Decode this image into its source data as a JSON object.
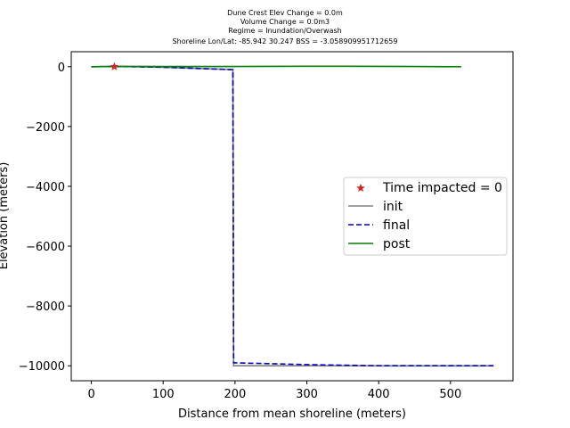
{
  "chart_data": {
    "type": "line",
    "title_lines": [
      "Dune Crest Elev Change = 0.0m",
      "Volume Change = 0.0m3",
      "Regime = Inundation/Overwash",
      "Shoreline Lon/Lat: -85.942 30.247   BSS = -3.058909951712659"
    ],
    "xlabel": "Distance from mean shoreline (meters)",
    "ylabel": "Elevation (meters)",
    "xlim": [
      -28,
      587
    ],
    "ylim": [
      -10500,
      500
    ],
    "xticks": [
      0,
      100,
      200,
      300,
      400,
      500
    ],
    "yticks": [
      0,
      -2000,
      -4000,
      -6000,
      -8000,
      -10000
    ],
    "xtick_labels": [
      "0",
      "100",
      "200",
      "300",
      "400",
      "500"
    ],
    "ytick_labels": [
      "0",
      "−2000",
      "−4000",
      "−6000",
      "−8000",
      "−10000"
    ],
    "series": [
      {
        "name": "init",
        "style": "solid",
        "color": "#808080",
        "x": [
          0,
          30,
          60,
          100,
          150,
          197,
          198,
          200,
          300,
          400,
          500,
          560
        ],
        "y": [
          0,
          5,
          0,
          -20,
          -60,
          -100,
          -10000,
          -10000,
          -10000,
          -10000,
          -10000,
          -10000
        ]
      },
      {
        "name": "final",
        "style": "dashed",
        "color": "#0000cc",
        "x": [
          0,
          30,
          60,
          100,
          150,
          197,
          198,
          200,
          250,
          300,
          400,
          500,
          560
        ],
        "y": [
          0,
          5,
          0,
          -20,
          -60,
          -100,
          -9900,
          -9900,
          -9930,
          -9960,
          -10000,
          -10000,
          -10000
        ]
      },
      {
        "name": "post",
        "style": "solid",
        "color": "#008000",
        "x": [
          0,
          50,
          100,
          150,
          200,
          250,
          300,
          350,
          400,
          450,
          515
        ],
        "y": [
          0,
          10,
          5,
          5,
          5,
          10,
          15,
          15,
          10,
          5,
          0
        ]
      }
    ],
    "markers": [
      {
        "name": "Time impacted = 0",
        "symbol": "star",
        "color": "#d62020",
        "x": 32,
        "y": 0
      }
    ],
    "legend": {
      "placement": "center-right",
      "entries": [
        "Time impacted = 0",
        "init",
        "final",
        "post"
      ]
    },
    "grid": false
  }
}
